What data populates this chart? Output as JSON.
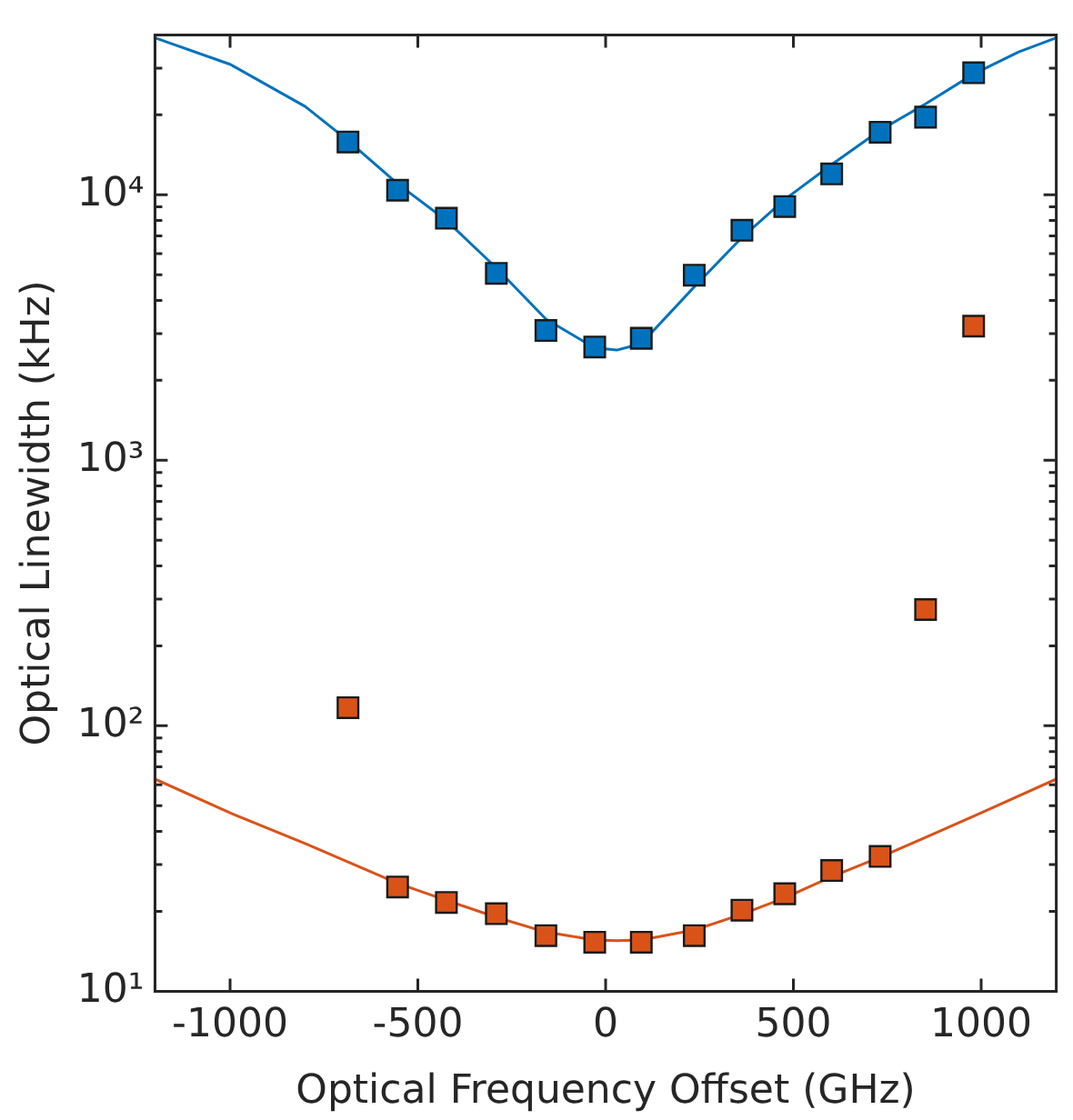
{
  "chart_data": {
    "type": "scatter",
    "xlabel": "Optical Frequency Offset (GHz)",
    "ylabel": "Optical Linewidth (kHz)",
    "x": [
      -686,
      -554,
      -424,
      -291,
      -159,
      -29,
      95,
      236,
      363,
      477,
      602,
      731,
      852,
      980
    ],
    "series": [
      {
        "type": "line",
        "marker": "none",
        "color": "#0072bd",
        "x": [
          -1200,
          -1000,
          -800,
          -686,
          -554,
          -424,
          -291,
          -159,
          -29,
          30,
          95,
          236,
          363,
          477,
          602,
          731,
          852,
          980,
          1100,
          1200
        ],
        "values": [
          39000,
          31000,
          21500,
          16000,
          11000,
          8000,
          5300,
          3400,
          2650,
          2600,
          2750,
          4500,
          6900,
          9600,
          13000,
          17500,
          22000,
          28500,
          34500,
          39000
        ]
      },
      {
        "type": "line",
        "marker": "none",
        "color": "#d95319",
        "x": [
          -1200,
          -1000,
          -800,
          -554,
          -424,
          -291,
          -159,
          -29,
          30,
          95,
          236,
          363,
          477,
          602,
          731,
          852,
          1000,
          1200
        ],
        "values": [
          63,
          47,
          36,
          25.5,
          22,
          19,
          16.7,
          15.6,
          15.5,
          15.6,
          17,
          19.5,
          22.5,
          27,
          32,
          38,
          47,
          63
        ]
      },
      {
        "color": "#0072bd",
        "values": [
          15800,
          10400,
          8160,
          5060,
          3080,
          2670,
          2880,
          4980,
          7350,
          9030,
          11980,
          17200,
          19600,
          28800
        ]
      },
      {
        "color": "#d95319",
        "values": [
          117,
          24.7,
          21.6,
          19.6,
          16.2,
          15.3,
          15.3,
          16.2,
          20.2,
          23.3,
          28.5,
          32.2,
          274,
          3200
        ]
      }
    ],
    "log": "y",
    "marker": "square",
    "grid": false,
    "legend": false,
    "xlim": [
      -1200,
      1200
    ],
    "xticks": [
      -1000,
      -500,
      0,
      500,
      1000
    ],
    "ylim": [
      10,
      40000
    ],
    "yticks": [
      {
        "value": 10,
        "label": "10¹"
      },
      {
        "value": 20,
        "label": null
      },
      {
        "value": 30,
        "label": null
      },
      {
        "value": 40,
        "label": null
      },
      {
        "value": 50,
        "label": null
      },
      {
        "value": 60,
        "label": null
      },
      {
        "value": 70,
        "label": null
      },
      {
        "value": 80,
        "label": null
      },
      {
        "value": 90,
        "label": null
      },
      {
        "value": 100,
        "label": "10²"
      },
      {
        "value": 200,
        "label": null
      },
      {
        "value": 300,
        "label": null
      },
      {
        "value": 400,
        "label": null
      },
      {
        "value": 500,
        "label": null
      },
      {
        "value": 600,
        "label": null
      },
      {
        "value": 700,
        "label": null
      },
      {
        "value": 800,
        "label": null
      },
      {
        "value": 900,
        "label": null
      },
      {
        "value": 1000,
        "label": "10³"
      },
      {
        "value": 2000,
        "label": null
      },
      {
        "value": 3000,
        "label": null
      },
      {
        "value": 4000,
        "label": null
      },
      {
        "value": 5000,
        "label": null
      },
      {
        "value": 6000,
        "label": null
      },
      {
        "value": 7000,
        "label": null
      },
      {
        "value": 8000,
        "label": null
      },
      {
        "value": 9000,
        "label": null
      },
      {
        "value": 10000,
        "label": "10⁴"
      },
      {
        "value": 20000,
        "label": null
      },
      {
        "value": 30000,
        "label": null
      }
    ]
  }
}
